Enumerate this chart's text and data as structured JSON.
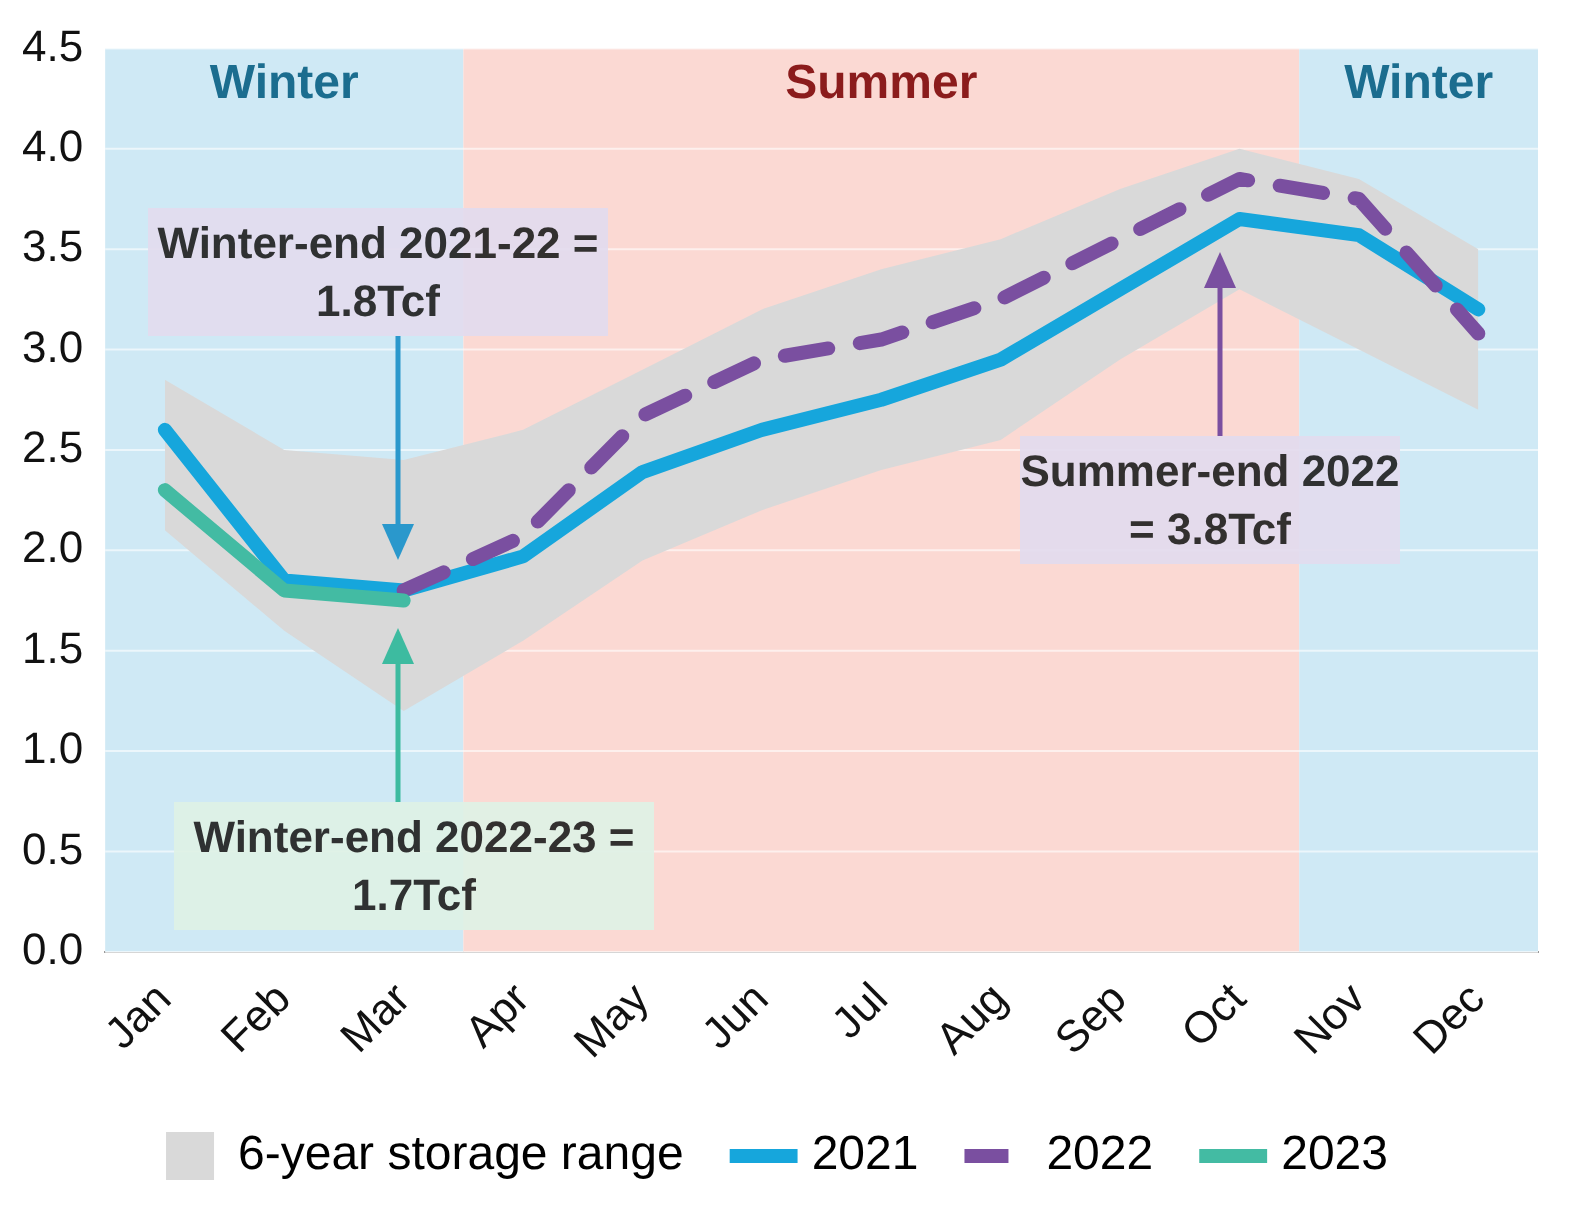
{
  "chart_data": {
    "type": "line",
    "categories": [
      "Jan",
      "Feb",
      "Mar",
      "Apr",
      "May",
      "Jun",
      "Jul",
      "Aug",
      "Sep",
      "Oct",
      "Nov",
      "Dec"
    ],
    "series": [
      {
        "name": "6-year storage range",
        "type": "area",
        "color": "#d9d9d9",
        "values": [
          null,
          null,
          null,
          null,
          null,
          null,
          null,
          null,
          null,
          null,
          null,
          null
        ],
        "lower": [
          2.1,
          1.6,
          1.2,
          1.55,
          1.95,
          2.2,
          2.4,
          2.55,
          2.95,
          3.3,
          3.0,
          2.7
        ],
        "upper": [
          2.85,
          2.5,
          2.45,
          2.6,
          2.9,
          3.2,
          3.4,
          3.55,
          3.8,
          4.0,
          3.85,
          3.5
        ]
      },
      {
        "name": "2021",
        "color": "#16a6dc",
        "values": [
          2.6,
          1.85,
          1.8,
          1.97,
          2.39,
          2.6,
          2.75,
          2.95,
          3.3,
          3.65,
          3.57,
          3.2
        ]
      },
      {
        "name": "2022",
        "color": "#7a4fa0",
        "line_style": "dashed",
        "values": [
          null,
          null,
          1.8,
          2.07,
          2.67,
          2.95,
          3.05,
          3.25,
          3.55,
          3.85,
          3.75,
          3.08
        ]
      },
      {
        "name": "2023",
        "color": "#43bba3",
        "values": [
          2.3,
          1.8,
          1.75,
          null,
          null,
          null,
          null,
          null,
          null,
          null,
          null,
          null
        ]
      }
    ],
    "ylim": [
      0,
      4.5
    ],
    "yticks": [
      {
        "value": 0,
        "label": "0.0"
      },
      0.5,
      {
        "value": 1,
        "label": "1.0"
      },
      1.5,
      {
        "value": 2,
        "label": "2.0"
      },
      2.5,
      {
        "value": 3,
        "label": "3.0"
      },
      3.5,
      {
        "value": 4,
        "label": "4.0"
      },
      4.5
    ],
    "grid": "y",
    "legend": "bottom",
    "marker": "none",
    "bands": [
      {
        "axis": "x",
        "from": "Jan",
        "to": "Mar",
        "label": "Winter",
        "color": "#cfe9f5"
      },
      {
        "axis": "x",
        "from": "Apr",
        "to": "Oct",
        "label": "Summer",
        "color": "#fbd9d3"
      },
      {
        "axis": "x",
        "from": "Nov",
        "to": "Dec",
        "label": "Winter",
        "color": "#cfe9f5"
      }
    ],
    "annotations": [
      "Winter-end 2021-22 = 1.8Tcf",
      "Winter-end 2022-23 = 1.7Tcf",
      "Summer-end 2022 = 3.8Tcf"
    ]
  }
}
